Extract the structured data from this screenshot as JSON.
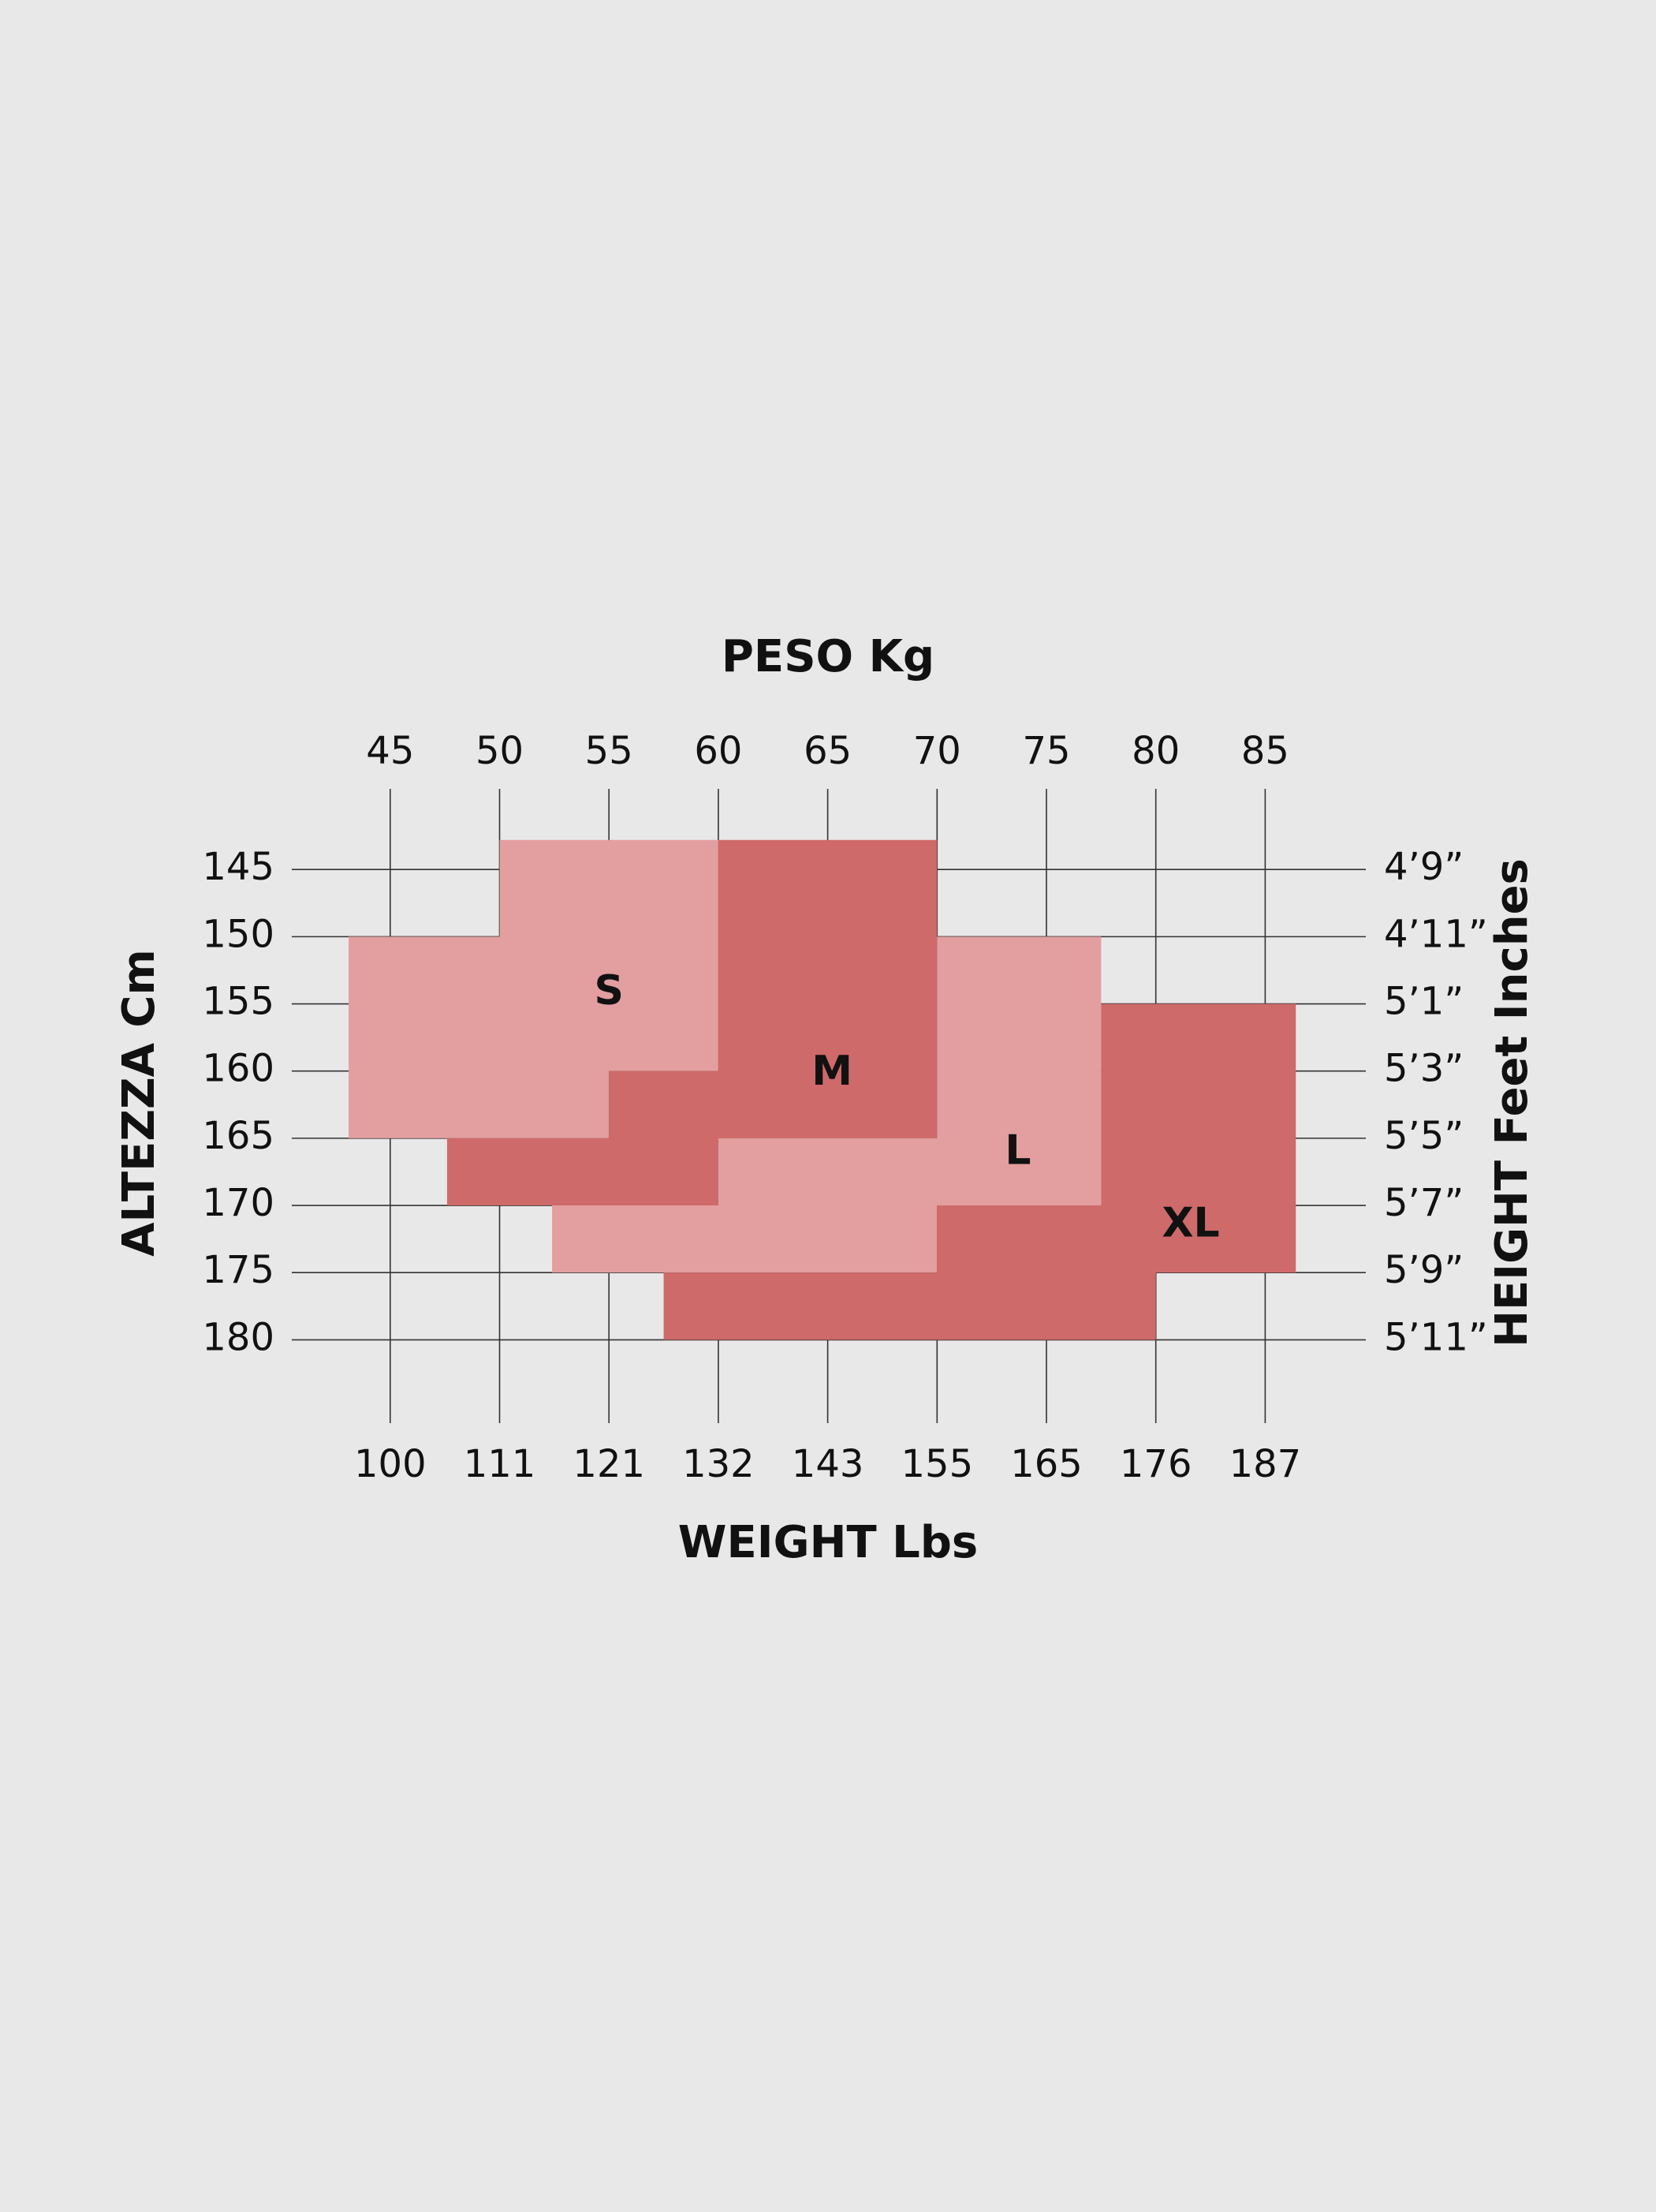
{
  "chart_data": {
    "type": "size-chart",
    "title": "PESO Kg",
    "x2_title": "WEIGHT Lbs",
    "y_title": "ALTEZZA Cm",
    "y2_title": "HEIGHT Feet Inches",
    "xlim": [
      40.5,
      89.6
    ],
    "ylim": [
      139,
      186.2
    ],
    "y_inverted": true,
    "xticks": [
      45,
      50,
      55,
      60,
      65,
      70,
      75,
      80,
      85
    ],
    "x2ticks": [
      {
        "value": 45,
        "label": "100"
      },
      {
        "value": 50,
        "label": "111"
      },
      {
        "value": 55,
        "label": "121"
      },
      {
        "value": 60,
        "label": "132"
      },
      {
        "value": 65,
        "label": "143"
      },
      {
        "value": 70,
        "label": "155"
      },
      {
        "value": 75,
        "label": "165"
      },
      {
        "value": 80,
        "label": "176"
      },
      {
        "value": 85,
        "label": "187"
      }
    ],
    "yticks": [
      145,
      150,
      155,
      160,
      165,
      170,
      175,
      180
    ],
    "y2ticks": [
      {
        "value": 145,
        "label": "4’9”"
      },
      {
        "value": 150,
        "label": "4’11”"
      },
      {
        "value": 155,
        "label": "5’1”"
      },
      {
        "value": 160,
        "label": "5’3”"
      },
      {
        "value": 165,
        "label": "5’5”"
      },
      {
        "value": 170,
        "label": "5’7”"
      },
      {
        "value": 175,
        "label": "5’9”"
      },
      {
        "value": 180,
        "label": "5’11”"
      }
    ],
    "grid": true,
    "grid_color": "#333333",
    "series": [
      {
        "name": "S",
        "color": "#e39e9f",
        "x": [
          50,
          60,
          60,
          55,
          55,
          43.1,
          43.1,
          50
        ],
        "y": [
          142.8,
          142.8,
          160,
          160,
          165,
          165,
          150,
          150
        ]
      },
      {
        "name": "M",
        "color": "#cf6a6a",
        "x": [
          60,
          70,
          70,
          60,
          60,
          47.6,
          47.6,
          55,
          55,
          60
        ],
        "y": [
          142.8,
          142.8,
          165,
          165,
          170,
          170,
          165,
          165,
          160,
          160
        ]
      },
      {
        "name": "L",
        "color": "#e39e9f",
        "x": [
          70,
          77.5,
          77.5,
          70,
          70,
          52.4,
          52.4,
          60,
          60,
          70
        ],
        "y": [
          150,
          150,
          170,
          170,
          175,
          175,
          170,
          170,
          165,
          165
        ]
      },
      {
        "name": "XL",
        "color": "#cf6a6a",
        "x": [
          77.5,
          86.4,
          86.4,
          80,
          80,
          57.5,
          57.5,
          70,
          70,
          77.5
        ],
        "y": [
          155,
          155,
          175,
          175,
          180,
          180,
          175,
          175,
          170,
          170
        ]
      }
    ]
  }
}
